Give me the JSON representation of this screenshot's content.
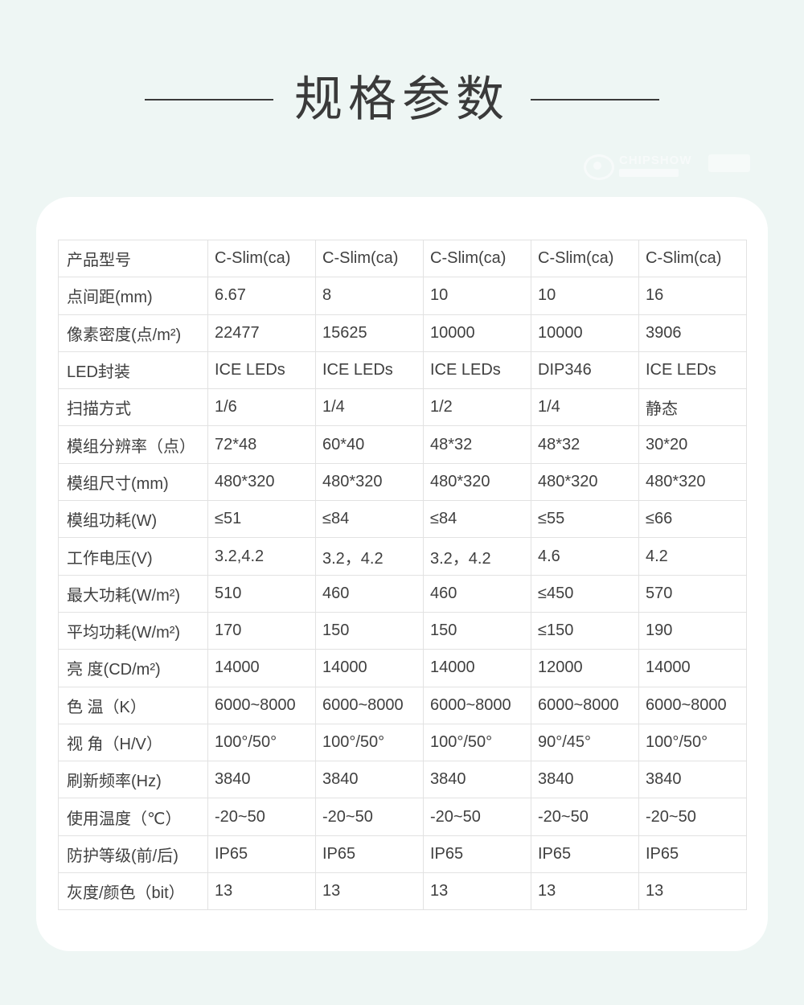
{
  "page": {
    "title": "规格参数",
    "background_color": "#eef6f4",
    "card_color": "#ffffff",
    "border_color": "#e2e2e2",
    "text_color": "#404040",
    "watermark_text": "CHIPSHOW"
  },
  "table": {
    "header": {
      "label": "产品型号",
      "values": [
        "C-Slim(ca)",
        "C-Slim(ca)",
        "C-Slim(ca)",
        "C-Slim(ca)",
        "C-Slim(ca)"
      ]
    },
    "rows": [
      {
        "label": "点间距(mm)",
        "values": [
          "6.67",
          "8",
          "10",
          "10",
          "16"
        ]
      },
      {
        "label": "像素密度(点/m²)",
        "values": [
          "22477",
          "15625",
          "10000",
          "10000",
          "3906"
        ]
      },
      {
        "label": "LED封装",
        "values": [
          "ICE LEDs",
          "ICE LEDs",
          "ICE LEDs",
          "DIP346",
          "ICE LEDs"
        ]
      },
      {
        "label": "扫描方式",
        "values": [
          "1/6",
          "1/4",
          "1/2",
          "1/4",
          "静态"
        ]
      },
      {
        "label": "模组分辨率（点）",
        "values": [
          "72*48",
          "60*40",
          "48*32",
          "48*32",
          "30*20"
        ]
      },
      {
        "label": "模组尺寸(mm)",
        "values": [
          "480*320",
          "480*320",
          "480*320",
          "480*320",
          "480*320"
        ]
      },
      {
        "label": "模组功耗(W)",
        "values": [
          "≤51",
          "≤84",
          "≤84",
          "≤55",
          "≤66"
        ]
      },
      {
        "label": "工作电压(V)",
        "values": [
          "3.2,4.2",
          "3.2，4.2",
          "3.2，4.2",
          "4.6",
          "4.2"
        ]
      },
      {
        "label": "最大功耗(W/m²)",
        "values": [
          "510",
          "460",
          "460",
          "≤450",
          "570"
        ]
      },
      {
        "label": "平均功耗(W/m²)",
        "values": [
          "170",
          "150",
          "150",
          "≤150",
          "190"
        ]
      },
      {
        "label": "亮 度(CD/m²)",
        "values": [
          "14000",
          "14000",
          "14000",
          "12000",
          "14000"
        ]
      },
      {
        "label": "色 温（K）",
        "values": [
          "6000~8000",
          "6000~8000",
          "6000~8000",
          "6000~8000",
          "6000~8000"
        ]
      },
      {
        "label": "视 角（H/V）",
        "values": [
          "100°/50°",
          "100°/50°",
          "100°/50°",
          "90°/45°",
          "100°/50°"
        ]
      },
      {
        "label": "刷新频率(Hz)",
        "values": [
          "3840",
          "3840",
          "3840",
          "3840",
          "3840"
        ]
      },
      {
        "label": "使用温度（℃）",
        "values": [
          "-20~50",
          "-20~50",
          "-20~50",
          "-20~50",
          "-20~50"
        ]
      },
      {
        "label": "防护等级(前/后)",
        "values": [
          "IP65",
          "IP65",
          "IP65",
          "IP65",
          "IP65"
        ]
      },
      {
        "label": "灰度/颜色（bit）",
        "values": [
          "13",
          "13",
          "13",
          "13",
          "13"
        ]
      }
    ]
  }
}
